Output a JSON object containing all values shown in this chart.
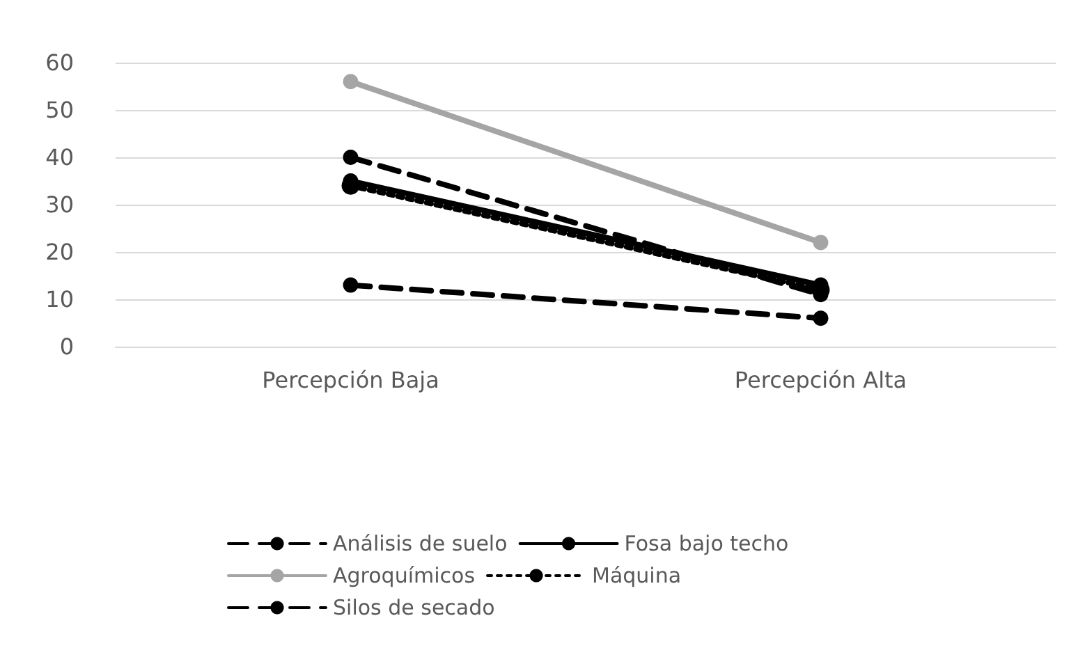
{
  "chart_data": {
    "type": "line",
    "categories": [
      "Percepción Baja",
      "Percepción Alta"
    ],
    "series": [
      {
        "name": "Análisis de suelo",
        "color": "#000000",
        "values": [
          40,
          11
        ],
        "line_style": "dashed"
      },
      {
        "name": "Fosa bajo techo",
        "color": "#000000",
        "values": [
          35,
          13
        ],
        "line_style": "solid"
      },
      {
        "name": "Agroquímicos",
        "color": "#a5a5a5",
        "values": [
          56,
          22
        ],
        "line_style": "solid"
      },
      {
        "name": "Máquina",
        "color": "#000000",
        "values": [
          34,
          12
        ],
        "line_style": "dotted"
      },
      {
        "name": "Silos de secado",
        "color": "#000000",
        "values": [
          13,
          6
        ],
        "line_style": "dashed"
      }
    ],
    "ylim": [
      0,
      60
    ],
    "yticks": [
      0,
      10,
      20,
      30,
      40,
      50,
      60
    ],
    "grid": "y",
    "legend": "bottom",
    "marker": "circle"
  }
}
